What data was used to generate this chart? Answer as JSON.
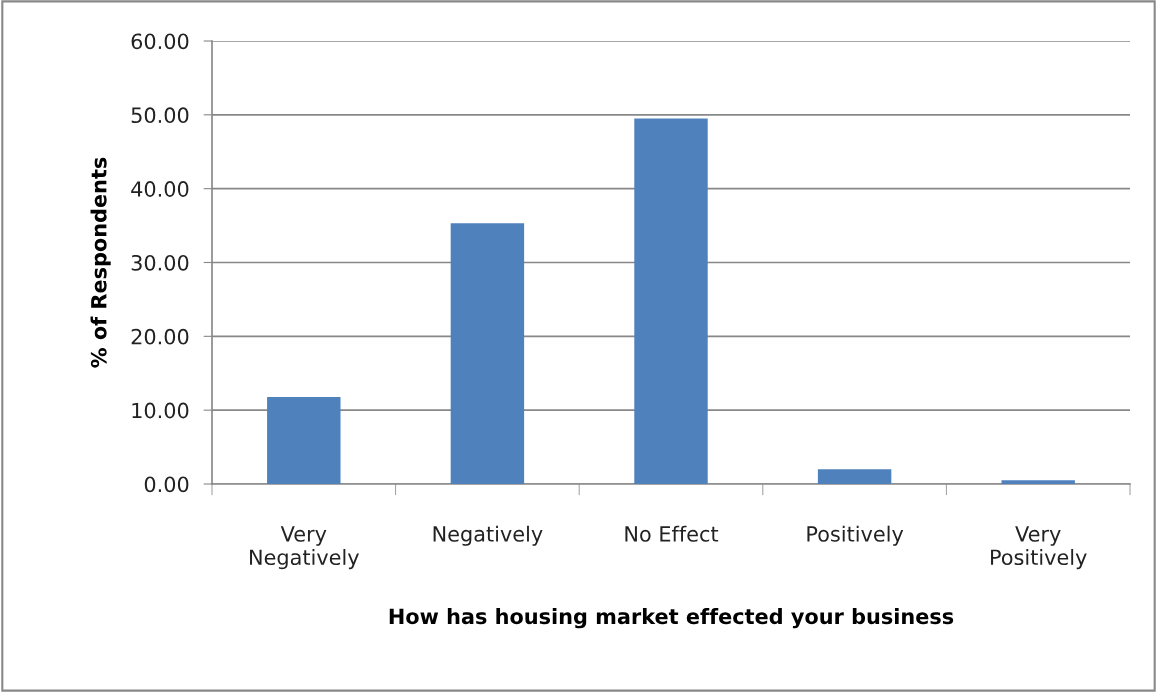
{
  "chart_data": {
    "type": "bar",
    "categories": [
      "Very\nNegatively",
      "Negatively",
      "No Effect",
      "Positively",
      "Very\nPositively"
    ],
    "values": [
      11.8,
      35.3,
      49.5,
      2.0,
      0.5
    ],
    "color": "#4f81bd",
    "xlabel": "How has housing market effected your business",
    "ylabel": "% of Respondents",
    "ylim": [
      0,
      60
    ],
    "yticks": [
      {
        "value": 0,
        "label": "0.00"
      },
      {
        "value": 10,
        "label": "10.00"
      },
      {
        "value": 20,
        "label": "20.00"
      },
      {
        "value": 30,
        "label": "30.00"
      },
      {
        "value": 40,
        "label": "40.00"
      },
      {
        "value": 50,
        "label": "50.00"
      },
      {
        "value": 60,
        "label": "60.00"
      }
    ],
    "grid": "y",
    "legend": false
  }
}
